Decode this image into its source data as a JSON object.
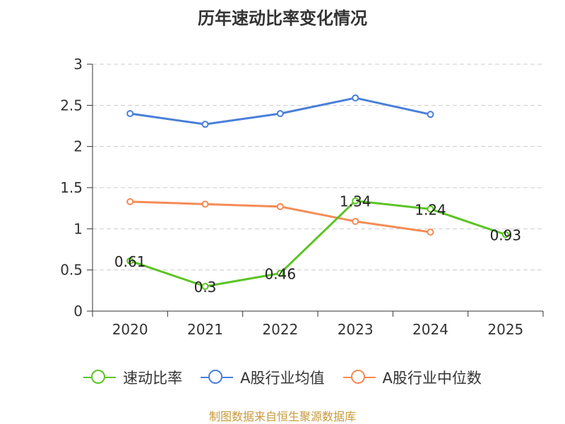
{
  "chart_data": {
    "type": "line",
    "title": "历年速动比率变化情况",
    "categories": [
      "2020",
      "2021",
      "2022",
      "2023",
      "2024",
      "2025"
    ],
    "yticks": [
      "0",
      "0.5",
      "1",
      "1.5",
      "2",
      "2.5",
      "3"
    ],
    "ylim": [
      0,
      3
    ],
    "grid": true,
    "legend_position": "bottom",
    "series": [
      {
        "name": "速动比率",
        "color": "#5bc424",
        "values": [
          0.61,
          0.3,
          0.46,
          1.34,
          1.24,
          0.93
        ],
        "labels": [
          "0.61",
          "0.3",
          "0.46",
          "1.34",
          "1.24",
          "0.93"
        ]
      },
      {
        "name": "A股行业均值",
        "color": "#4a7fd8",
        "values": [
          2.4,
          2.27,
          2.4,
          2.59,
          2.39,
          null
        ]
      },
      {
        "name": "A股行业中位数",
        "color": "#f58b55",
        "values": [
          1.33,
          1.3,
          1.27,
          1.09,
          0.96,
          null
        ]
      }
    ]
  },
  "source": "制图数据来自恒生聚源数据库"
}
